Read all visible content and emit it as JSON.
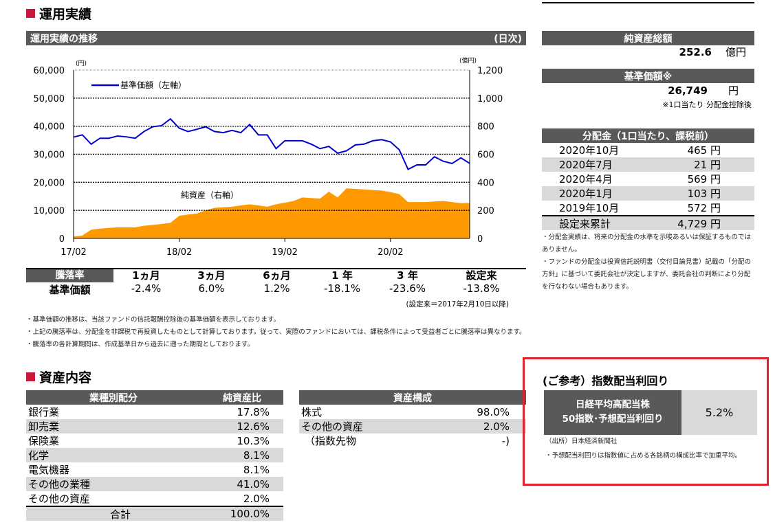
{
  "performance": {
    "section_title": "運用実績",
    "chart_header": "運用実績の推移",
    "chart_freq": "(日次)"
  },
  "chart_data": {
    "type": "line+area",
    "left_unit": "(円)",
    "right_unit": "(億円)",
    "left_ticks": [
      "60,000",
      "50,000",
      "40,000",
      "30,000",
      "20,000",
      "10,000",
      "0"
    ],
    "right_ticks": [
      "1,200",
      "1,000",
      "800",
      "600",
      "400",
      "200",
      "0"
    ],
    "ylim_left": [
      0,
      60000
    ],
    "ylim_right": [
      0,
      1200
    ],
    "x_ticks": [
      "17/02",
      "18/02",
      "19/02",
      "20/02"
    ],
    "x_months_from_start": [
      0,
      12,
      24,
      36
    ],
    "grid": true,
    "legend": "top-left",
    "series": [
      {
        "name": "基準価額（左軸）",
        "axis": "left",
        "type": "line",
        "color": "#0000cc",
        "values": [
          36100,
          36900,
          33600,
          35700,
          35700,
          36500,
          36200,
          35700,
          38100,
          39800,
          40200,
          42600,
          39300,
          38100,
          38900,
          39800,
          38100,
          37700,
          38500,
          37700,
          40600,
          36900,
          36900,
          32000,
          34800,
          34800,
          34800,
          33600,
          32000,
          32800,
          30400,
          31200,
          33300,
          33600,
          34800,
          35200,
          34400,
          31600,
          24600,
          26200,
          26200,
          29100,
          27500,
          26700,
          28700,
          26749
        ]
      },
      {
        "name": "純資産（右軸）",
        "axis": "right",
        "type": "area",
        "color": "#ff9900",
        "values": [
          13,
          21,
          62,
          70,
          75,
          79,
          79,
          79,
          90,
          96,
          103,
          111,
          161,
          170,
          177,
          200,
          218,
          222,
          226,
          235,
          243,
          235,
          226,
          243,
          255,
          267,
          292,
          288,
          284,
          333,
          292,
          357,
          353,
          349,
          345,
          341,
          330,
          316,
          259,
          259,
          259,
          263,
          267,
          259,
          251,
          252.6
        ]
      }
    ]
  },
  "returns": {
    "header_label": "騰落率",
    "columns": [
      "1ヵ月",
      "3ヵ月",
      "6ヵ月",
      "1 年",
      "3 年",
      "設定来"
    ],
    "row_label": "基準価額",
    "values": [
      "-2.4%",
      "6.0%",
      "1.2%",
      "-18.1%",
      "-23.6%",
      "-13.8%"
    ],
    "note": "(設定来＝2017年2月10日以降)"
  },
  "footnotes": [
    "・基準価額の推移は、当該ファンドの信託報酬控除後の基準価額を表示しております。",
    "・上記の騰落率は、分配金を非課税で再投資したものとして計算しております。従って、実際のファンドにおいては、課税条件によって受益者ごとに騰落率は異なります。",
    "・騰落率の各計算期間は、作成基準日から過去に遡った期間としております。"
  ],
  "net_assets": {
    "label": "純資産総額",
    "value": "252.6",
    "unit": "億円"
  },
  "nav": {
    "label": "基準価額※",
    "value": "26,749",
    "unit": "円",
    "note": "※1口当たり 分配金控除後"
  },
  "dividends": {
    "label": "分配金（1口当たり、課税前）",
    "rows": [
      {
        "date": "2020年10月",
        "amount": "465 円"
      },
      {
        "date": "2020年7月",
        "amount": "21 円"
      },
      {
        "date": "2020年4月",
        "amount": "569 円"
      },
      {
        "date": "2020年1月",
        "amount": "103 円"
      },
      {
        "date": "2019年10月",
        "amount": "572 円"
      }
    ],
    "total_label": "設定来累計",
    "total": "4,729 円",
    "notes": [
      "・分配金実績は、将来の分配金の水準を示唆あるいは保証するものではありません。",
      "・ファンドの分配金は投資信託説明書（交付目論見書）記載の「分配の方針」に基づいて委託会社が決定しますが、委託会社の判断により分配を行なわない場合もあります。"
    ]
  },
  "assets": {
    "section_title": "資産内容",
    "sector": {
      "headers": [
        "業種別配分",
        "純資産比"
      ],
      "rows": [
        [
          "銀行業",
          "17.8%"
        ],
        [
          "卸売業",
          "12.6%"
        ],
        [
          "保険業",
          "10.3%"
        ],
        [
          "化学",
          "8.1%"
        ],
        [
          "電気機器",
          "8.1%"
        ],
        [
          "その他の業種",
          "41.0%"
        ],
        [
          "その他の資産",
          "2.0%"
        ]
      ],
      "total": [
        "合計",
        "100.0%"
      ]
    },
    "composition": {
      "header": "資産構成",
      "rows": [
        [
          "株式",
          "98.0%"
        ],
        [
          "その他の資産",
          "2.0%"
        ],
        [
          "（指数先物",
          "-)"
        ]
      ]
    }
  },
  "yield": {
    "title": "(ご参考）指数配当利回り",
    "label_line1": "日経平均高配当株",
    "label_line2": "50指数･予想配当利回り",
    "value": "5.2%",
    "source": "（出所）日本経済新聞社",
    "note": "・予想配当利回りは指数値に占める各銘柄の構成比率で加重平均。",
    "border_color": "#e0202a"
  }
}
